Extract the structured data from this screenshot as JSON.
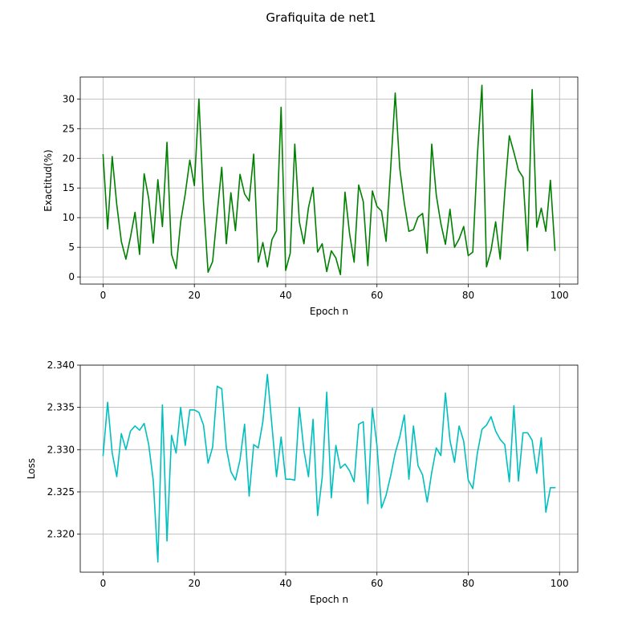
{
  "title": "Grafiquita de net1",
  "colors": {
    "accuracy": "#008000",
    "loss": "#00bfbf",
    "grid": "#b0b0b0"
  },
  "chart_data": [
    {
      "type": "line",
      "xlabel": "Epoch n",
      "ylabel": "Exactitud(%)",
      "xlim": [
        -5,
        104
      ],
      "ylim": [
        -1.2,
        33.7
      ],
      "xticks": [
        0,
        20,
        40,
        60,
        80,
        100
      ],
      "yticks": [
        0,
        5,
        10,
        15,
        20,
        25,
        30
      ],
      "xtick_labels": [
        "0",
        "20",
        "40",
        "60",
        "80",
        "100"
      ],
      "ytick_labels": [
        "0",
        "5",
        "10",
        "15",
        "20",
        "25",
        "30"
      ],
      "grid": true,
      "series": [
        {
          "color": "#008000",
          "x": [
            0,
            1,
            2,
            3,
            4,
            5,
            6,
            7,
            8,
            9,
            10,
            11,
            12,
            13,
            14,
            15,
            16,
            17,
            18,
            19,
            20,
            21,
            22,
            23,
            24,
            25,
            26,
            27,
            28,
            29,
            30,
            31,
            32,
            33,
            34,
            35,
            36,
            37,
            38,
            39,
            40,
            41,
            42,
            43,
            44,
            45,
            46,
            47,
            48,
            49,
            50,
            51,
            52,
            53,
            54,
            55,
            56,
            57,
            58,
            59,
            60,
            61,
            62,
            63,
            64,
            65,
            66,
            67,
            68,
            69,
            70,
            71,
            72,
            73,
            74,
            75,
            76,
            77,
            78,
            79,
            80,
            81,
            82,
            83,
            84,
            85,
            86,
            87,
            88,
            89,
            90,
            91,
            92,
            93,
            94,
            95,
            96,
            97,
            98,
            99
          ],
          "y": [
            20.6,
            8.1,
            20.3,
            12.2,
            6.0,
            3.0,
            6.7,
            10.9,
            3.8,
            17.4,
            13.2,
            5.7,
            16.4,
            8.5,
            22.7,
            3.8,
            1.4,
            9.3,
            14.0,
            19.7,
            15.4,
            30.0,
            12.6,
            0.8,
            2.6,
            10.7,
            18.5,
            5.6,
            14.2,
            7.8,
            17.3,
            14.0,
            12.8,
            20.7,
            2.5,
            5.8,
            1.7,
            6.3,
            7.8,
            28.6,
            1.1,
            4.0,
            22.4,
            9.3,
            5.6,
            11.7,
            15.1,
            4.2,
            5.6,
            0.9,
            4.4,
            3.2,
            0.4,
            14.3,
            7.3,
            2.5,
            15.5,
            12.7,
            1.9,
            14.5,
            11.9,
            11.1,
            6.0,
            18.2,
            31.0,
            18.3,
            12.4,
            7.7,
            8.0,
            10.1,
            10.7,
            4.0,
            22.4,
            13.8,
            9.0,
            5.5,
            11.4,
            5.0,
            6.4,
            8.5,
            3.6,
            4.2,
            20.5,
            32.3,
            1.7,
            4.5,
            9.3,
            3.0,
            14.2,
            23.8,
            21.0,
            18.0,
            16.8,
            4.4,
            31.6,
            8.4,
            11.6,
            7.7,
            16.3,
            4.5
          ]
        }
      ]
    },
    {
      "type": "line",
      "xlabel": "Epoch n",
      "ylabel": "Loss",
      "xlim": [
        -5,
        104
      ],
      "ylim": [
        2.3155,
        2.34
      ],
      "xticks": [
        0,
        20,
        40,
        60,
        80,
        100
      ],
      "yticks": [
        2.32,
        2.325,
        2.33,
        2.335,
        2.34
      ],
      "xtick_labels": [
        "0",
        "20",
        "40",
        "60",
        "80",
        "100"
      ],
      "ytick_labels": [
        "2.320",
        "2.325",
        "2.330",
        "2.335",
        "2.340"
      ],
      "grid": true,
      "series": [
        {
          "color": "#00bfbf",
          "x": [
            0,
            1,
            2,
            3,
            4,
            5,
            6,
            7,
            8,
            9,
            10,
            11,
            12,
            13,
            14,
            15,
            16,
            17,
            18,
            19,
            20,
            21,
            22,
            23,
            24,
            25,
            26,
            27,
            28,
            29,
            30,
            31,
            32,
            33,
            34,
            35,
            36,
            37,
            38,
            39,
            40,
            41,
            42,
            43,
            44,
            45,
            46,
            47,
            48,
            49,
            50,
            51,
            52,
            53,
            54,
            55,
            56,
            57,
            58,
            59,
            60,
            61,
            62,
            63,
            64,
            65,
            66,
            67,
            68,
            69,
            70,
            71,
            72,
            73,
            74,
            75,
            76,
            77,
            78,
            79,
            80,
            81,
            82,
            83,
            84,
            85,
            86,
            87,
            88,
            89,
            90,
            91,
            92,
            93,
            94,
            95,
            96,
            97,
            98,
            99
          ],
          "y": [
            2.3293,
            2.3356,
            2.3296,
            2.3268,
            2.3319,
            2.33,
            2.3322,
            2.3328,
            2.3323,
            2.3331,
            2.3306,
            2.3263,
            2.3167,
            2.3353,
            2.3192,
            2.3317,
            2.3296,
            2.335,
            2.3305,
            2.3347,
            2.3347,
            2.3344,
            2.3329,
            2.3284,
            2.3303,
            2.3375,
            2.3372,
            2.3302,
            2.3274,
            2.3264,
            2.3288,
            2.333,
            2.3245,
            2.3306,
            2.3302,
            2.3333,
            2.3389,
            2.3328,
            2.3268,
            2.3315,
            2.3265,
            2.3265,
            2.3264,
            2.335,
            2.3299,
            2.3268,
            2.3336,
            2.3222,
            2.3267,
            2.3368,
            2.3243,
            2.3305,
            2.3278,
            2.3283,
            2.3275,
            2.3262,
            2.333,
            2.3333,
            2.3236,
            2.3349,
            2.3305,
            2.3231,
            2.3246,
            2.3269,
            2.3296,
            2.3315,
            2.3341,
            2.3265,
            2.3328,
            2.3281,
            2.327,
            2.3238,
            2.3273,
            2.3302,
            2.3293,
            2.3367,
            2.3311,
            2.3285,
            2.3328,
            2.331,
            2.3264,
            2.3254,
            2.3296,
            2.3324,
            2.3329,
            2.3339,
            2.3322,
            2.3312,
            2.3306,
            2.3262,
            2.3352,
            2.3263,
            2.332,
            2.332,
            2.3311,
            2.3272,
            2.3314,
            2.3226,
            2.3255,
            2.3255
          ]
        }
      ]
    }
  ]
}
